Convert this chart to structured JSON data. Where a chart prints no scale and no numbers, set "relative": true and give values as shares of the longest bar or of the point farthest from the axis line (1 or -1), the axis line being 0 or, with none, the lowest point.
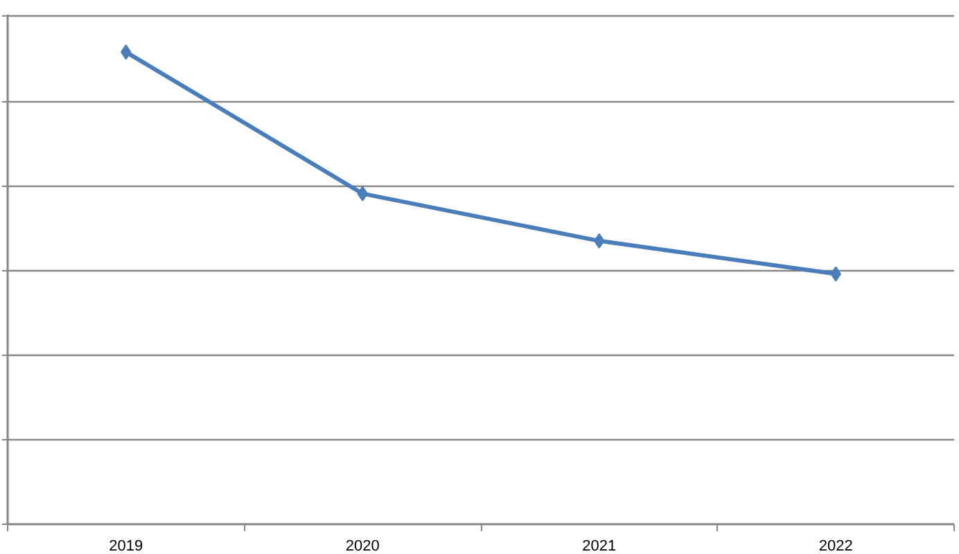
{
  "chart_data": {
    "type": "line",
    "categories": [
      "2019",
      "2020",
      "2021",
      "2022"
    ],
    "series": [
      {
        "color": "#4a7ebb",
        "values": [
          1,
          0.7,
          0.6,
          0.53
        ]
      }
    ],
    "relative": true,
    "grid": "y",
    "marker": "diamond",
    "line_style": "solid",
    "tick_labels": "x"
  }
}
